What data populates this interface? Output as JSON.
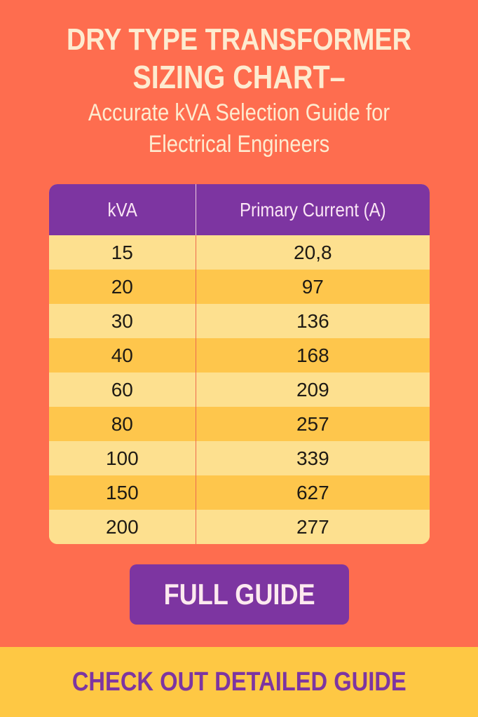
{
  "title": {
    "line1": "DRY TYPE TRANSFORMER",
    "line2": "SIZING CHART–",
    "line3": "Accurate kVA Selection Guide for",
    "line4": "Electrical Engineers"
  },
  "table": {
    "headers": [
      "kVA",
      "Primary Current (A)"
    ],
    "rows": [
      {
        "kva": "15",
        "current": "20,8"
      },
      {
        "kva": "20",
        "current": "97"
      },
      {
        "kva": "30",
        "current": "136"
      },
      {
        "kva": "40",
        "current": "168"
      },
      {
        "kva": "60",
        "current": "209"
      },
      {
        "kva": "80",
        "current": "257"
      },
      {
        "kva": "100",
        "current": "339"
      },
      {
        "kva": "150",
        "current": "627"
      },
      {
        "kva": "200",
        "current": "277"
      }
    ]
  },
  "button": {
    "label": "FULL GUIDE"
  },
  "footer": {
    "label": "CHECK OUT DETAILED GUIDE"
  },
  "colors": {
    "background": "#fe6d4f",
    "purple": "#7d35a1",
    "row_light": "#fde08f",
    "row_dark": "#fec64c",
    "footer": "#fec844",
    "title_text": "#fdebd0"
  }
}
